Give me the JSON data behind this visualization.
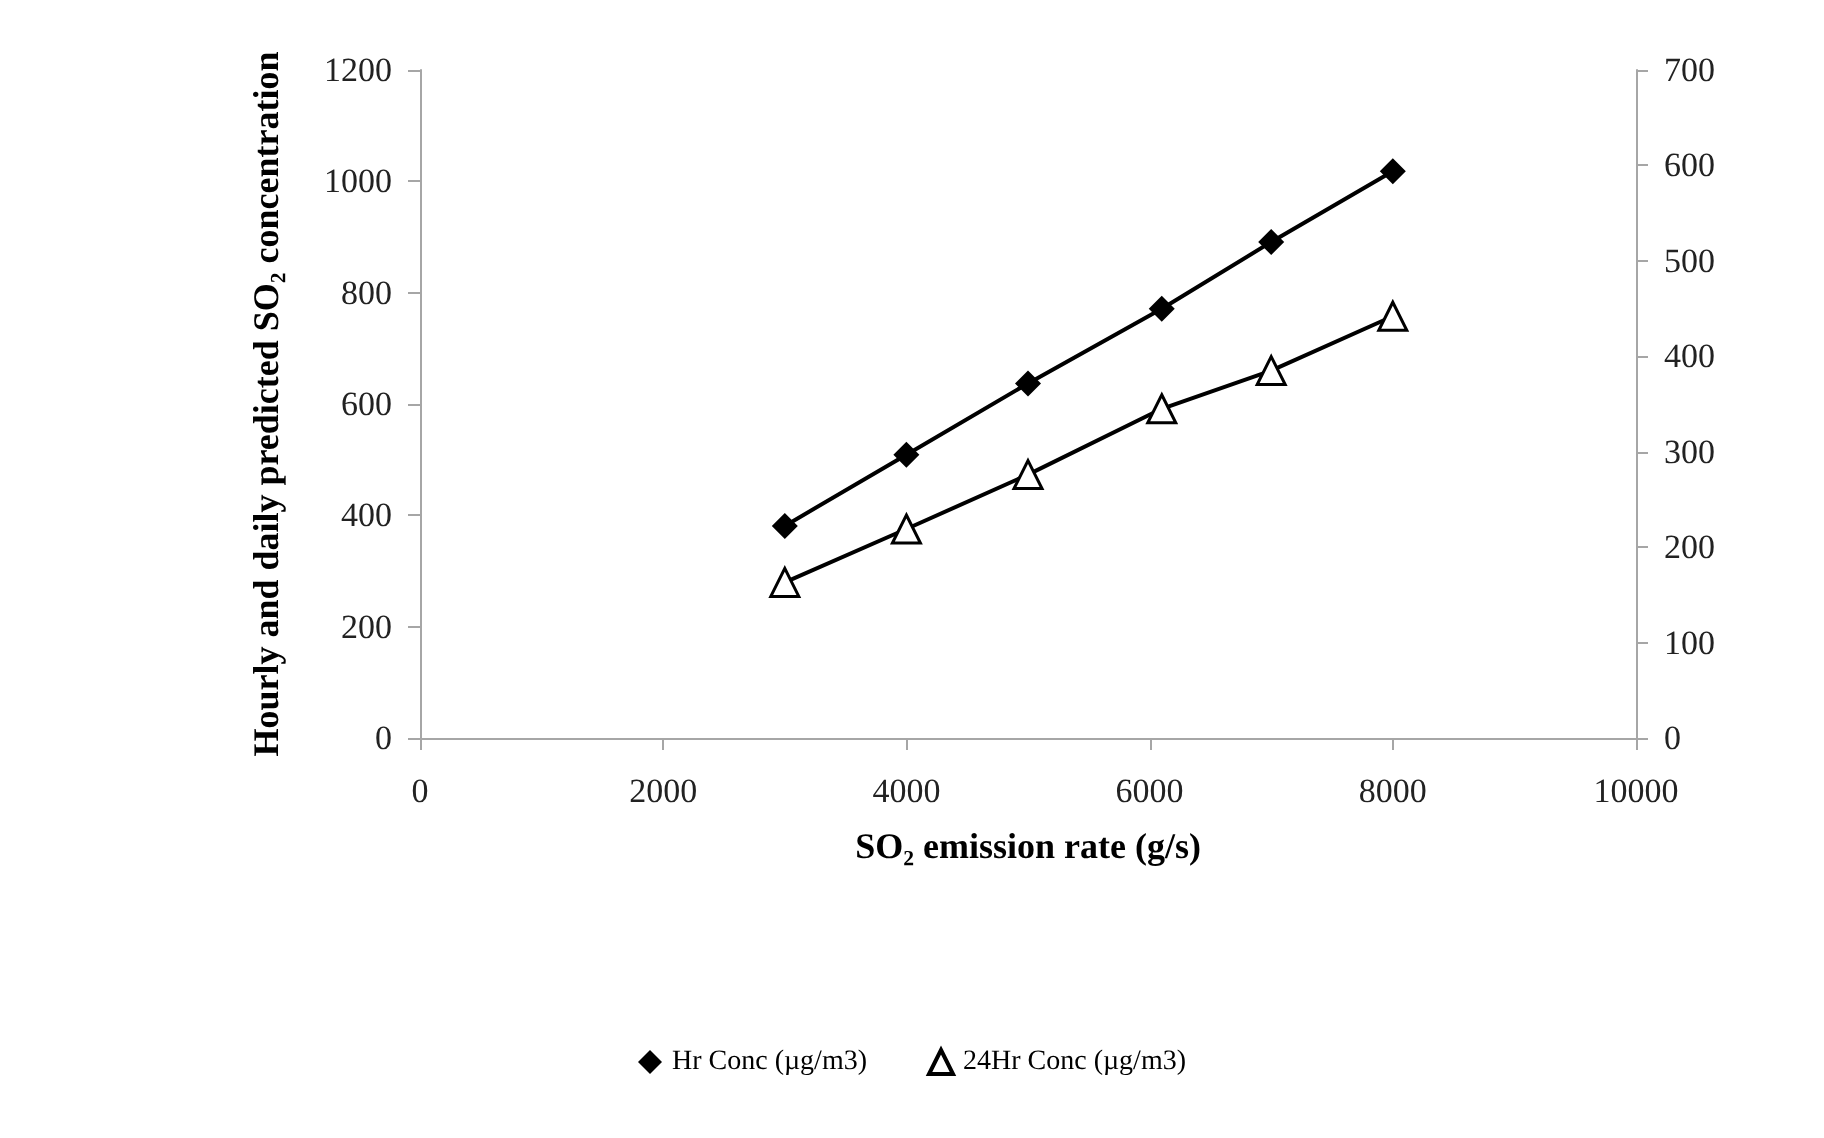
{
  "chart_data": {
    "type": "line",
    "xlabel": "SO₂ emission rate (g/s)",
    "ylabel": "Hourly and daily predicted SO₂ concentration",
    "x": [
      3000,
      4000,
      5000,
      6100,
      7000,
      8000
    ],
    "series": [
      {
        "name": "Hr Conc (µg/m3)",
        "color": "#000000",
        "marker": "diamond",
        "values": [
          381,
          509,
          637,
          771,
          891,
          1018
        ]
      },
      {
        "name": "24Hr Conc (µg/m3)",
        "color": "#000000",
        "marker": "triangle",
        "axis": "y2",
        "values": [
          163,
          219,
          276,
          345,
          385,
          442
        ]
      }
    ],
    "xlim": [
      0,
      10000
    ],
    "xticks": [
      0,
      2000,
      4000,
      6000,
      8000,
      10000
    ],
    "ylim": [
      0,
      1200
    ],
    "yticks": [
      0,
      200,
      400,
      600,
      800,
      1000,
      1200
    ],
    "y2lim": [
      0,
      700
    ],
    "y2ticks": [
      0,
      100,
      200,
      300,
      400,
      500,
      600,
      700
    ],
    "grid": false,
    "legend": "bottom",
    "line_style": "solid"
  }
}
